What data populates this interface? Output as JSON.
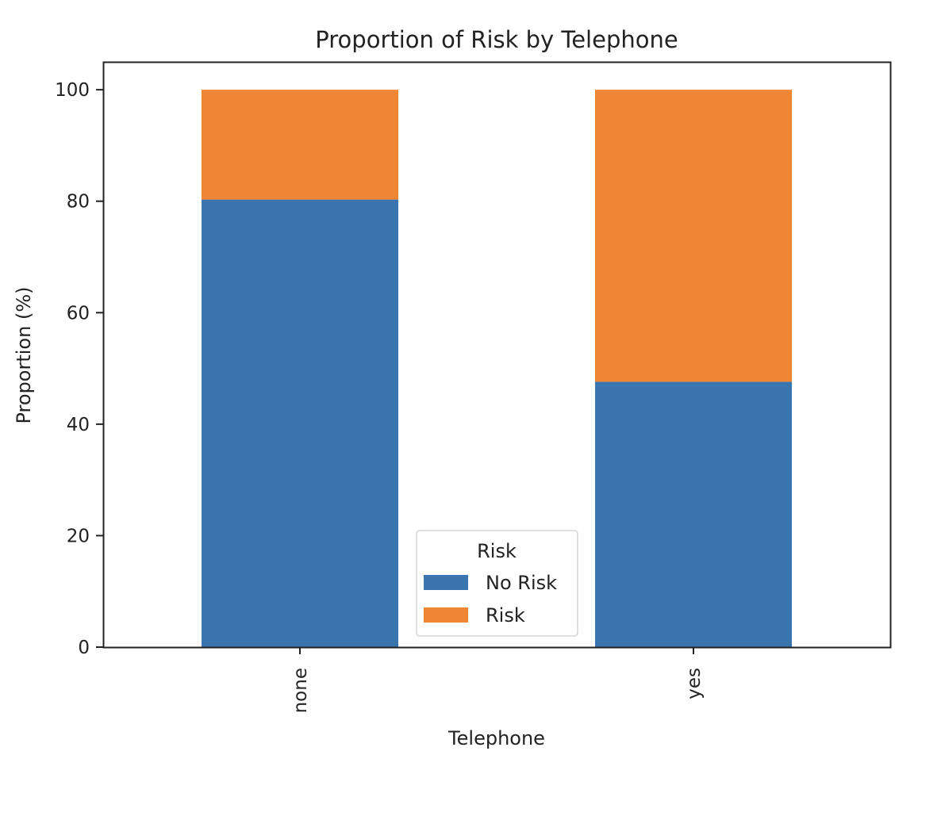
{
  "chart_data": {
    "type": "bar",
    "stacked": true,
    "title": "Proportion of Risk by Telephone",
    "xlabel": "Telephone",
    "ylabel": "Proportion (%)",
    "categories": [
      "none",
      "yes"
    ],
    "series": [
      {
        "name": "No Risk",
        "values": [
          80.3,
          47.6
        ],
        "color": "#3b75af"
      },
      {
        "name": "Risk",
        "values": [
          19.7,
          52.4
        ],
        "color": "#ef8636"
      }
    ],
    "ylim": [
      0,
      105
    ],
    "yticks": [
      0,
      20,
      40,
      60,
      80,
      100
    ],
    "grid": false,
    "legend": {
      "title": "Risk",
      "placement": "lower-center"
    }
  }
}
